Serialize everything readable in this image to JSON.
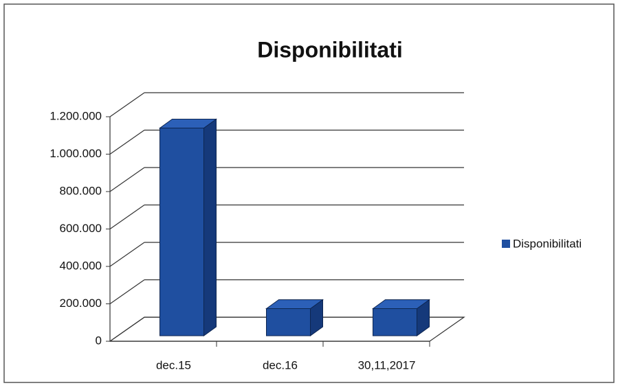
{
  "chart_data": {
    "type": "bar3d",
    "title": "Disponibilitati",
    "categories": [
      "dec.15",
      "dec.16",
      "30,11,2017"
    ],
    "series": [
      {
        "name": "Disponibilitati",
        "color": "#1f4fa0",
        "values": [
          1110000,
          145000,
          145000
        ]
      }
    ],
    "ylim": [
      0,
      1200000
    ],
    "yticks": [
      0,
      {
        "value": 200000,
        "label": "200.000"
      },
      {
        "value": 400000,
        "label": "400.000"
      },
      {
        "value": 600000,
        "label": "600.000"
      },
      {
        "value": 800000,
        "label": "800.000"
      },
      {
        "value": 1000000,
        "label": "1.000.000"
      },
      {
        "value": 1200000,
        "label": "1.200.000"
      }
    ],
    "grid": true,
    "legend": "right"
  }
}
